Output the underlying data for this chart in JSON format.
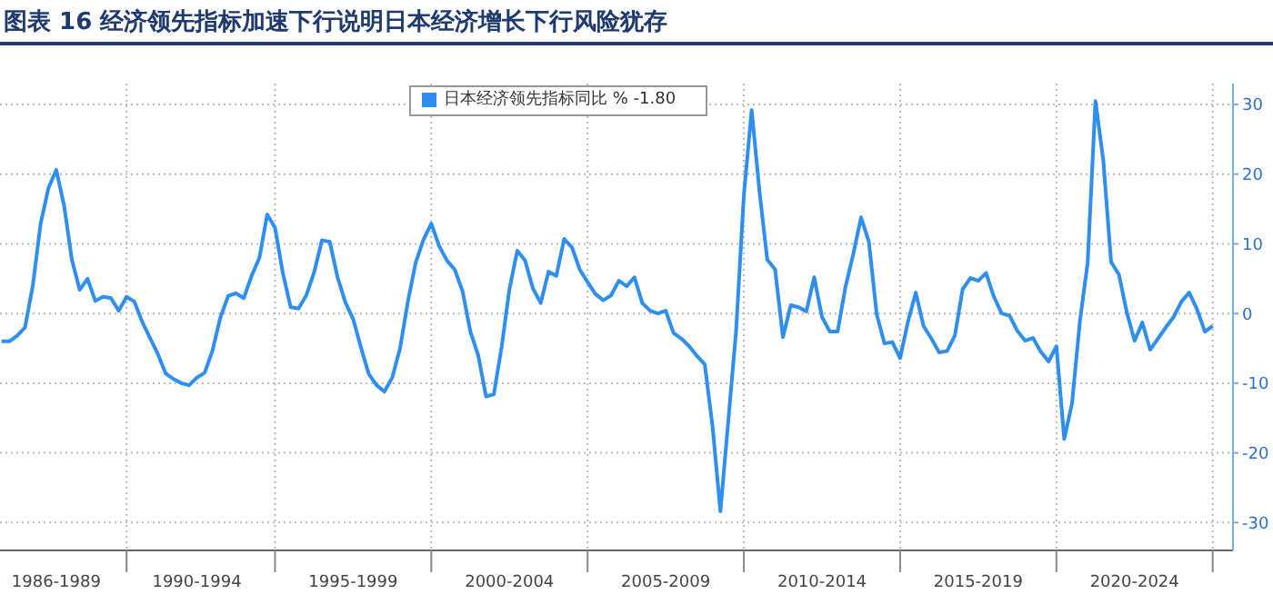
{
  "chart_data": {
    "type": "line",
    "title": "图表 16  经济领先指标加速下行说明日本经济增长下行风险犹存",
    "categories": [
      null,
      null,
      null,
      null,
      null,
      null,
      null,
      "1986-1989",
      null,
      null,
      null,
      null,
      null,
      null,
      null,
      null,
      null,
      null,
      null,
      null,
      null,
      null,
      null,
      null,
      null,
      "1990-1994",
      null,
      null,
      null,
      null,
      null,
      null,
      null,
      null,
      null,
      null,
      null,
      null,
      null,
      null,
      null,
      null,
      null,
      null,
      null,
      "1995-1999",
      null,
      null,
      null,
      null,
      null,
      null,
      null,
      null,
      null,
      null,
      null,
      null,
      null,
      null,
      null,
      null,
      null,
      null,
      null,
      "2000-2004",
      null,
      null,
      null,
      null,
      null,
      null,
      null,
      null,
      null,
      null,
      null,
      null,
      null,
      null,
      null,
      null,
      null,
      null,
      null,
      "2005-2009",
      null,
      null,
      null,
      null,
      null,
      null,
      null,
      null,
      null,
      null,
      null,
      null,
      null,
      null,
      null,
      null,
      null,
      null,
      null,
      "2010-2014",
      null,
      null,
      null,
      null,
      null,
      null,
      null,
      null,
      null,
      null,
      null,
      null,
      null,
      null,
      null,
      null,
      null,
      null,
      null,
      "2015-2019",
      null,
      null,
      null,
      null,
      null,
      null,
      null,
      null,
      null,
      null,
      null,
      null,
      null,
      null,
      null,
      null,
      null,
      null,
      null,
      "2020-2024",
      null,
      null,
      null,
      null,
      null,
      null,
      null,
      null,
      null,
      null
    ],
    "series": [
      {
        "name": "日本经济领先指标同比 % -1.80",
        "color": "#2e8ff0",
        "values": [
          -4,
          -4,
          -3.2,
          -2,
          4,
          12.9,
          18,
          20.6,
          15.5,
          7.7,
          3.4,
          5,
          1.8,
          2.4,
          2.2,
          0.4,
          2.4,
          1.7,
          -1.2,
          -3.5,
          -5.8,
          -8.6,
          -9.4,
          -10,
          -10.3,
          -9.2,
          -8.5,
          -5.3,
          -0.6,
          2.5,
          2.9,
          2.2,
          5.4,
          8,
          14.2,
          12.3,
          5.8,
          0.9,
          0.7,
          2.6,
          5.9,
          10.5,
          10.3,
          5.2,
          1.6,
          -0.8,
          -4.9,
          -8.7,
          -10.3,
          -11.2,
          -9.2,
          -5,
          1.7,
          7.3,
          10.6,
          12.9,
          9.7,
          7.6,
          6.3,
          3.2,
          -2.6,
          -6,
          -11.9,
          -11.6,
          -4.8,
          3.5,
          9.0,
          7.6,
          3.6,
          1.5,
          6,
          5.4,
          10.7,
          9.5,
          6.3,
          4.5,
          2.8,
          1.9,
          2.6,
          4.7,
          3.9,
          5.2,
          1.5,
          0.4,
          0,
          0.4,
          -2.8,
          -3.6,
          -4.7,
          -6.1,
          -7.3,
          -16.3,
          -28.4,
          -15.5,
          -2.6,
          17,
          29.2,
          17.5,
          7.7,
          6.3,
          -3.4,
          1.2,
          0.9,
          0.3,
          5.2,
          -0.5,
          -2.6,
          -2.6,
          3.8,
          8.5,
          13.8,
          10.3,
          -0.1,
          -4.3,
          -4.1,
          -6.4,
          -1.2,
          3.0,
          -1.8,
          -3.6,
          -5.6,
          -5.4,
          -3.2,
          3.5,
          5.1,
          4.7,
          5.8,
          2.4,
          0,
          -0.3,
          -2.5,
          -3.9,
          -3.5,
          -5.5,
          -6.9,
          -4.7,
          -18,
          -12.9,
          -1.2,
          7.3,
          30.5,
          22,
          7.4,
          5.6,
          0.2,
          -3.9,
          -1.3,
          -5.2,
          -3.6,
          -2,
          -0.5,
          1.7,
          3.0,
          0.6,
          -2.6,
          -1.8
        ]
      }
    ],
    "ylim": [
      -34,
      33
    ],
    "yticks": [
      -30,
      -20,
      -10,
      0,
      10,
      20,
      30
    ],
    "grid": true,
    "legend": "top",
    "marker": "none",
    "line_style": "solid"
  }
}
